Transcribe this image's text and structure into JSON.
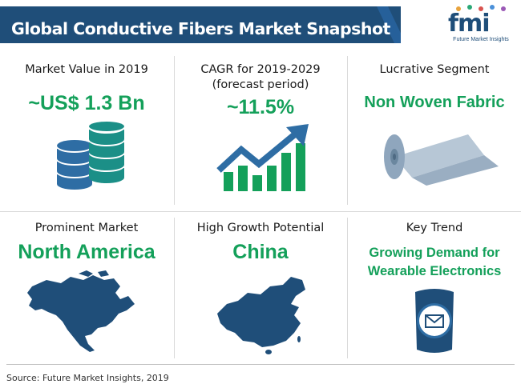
{
  "header": {
    "title": "Global Conductive Fibers Market Snapshot",
    "logo_text": "fmi",
    "logo_subtitle": "Future Market Insights"
  },
  "cells": {
    "market_value": {
      "label": "Market Value in 2019",
      "value": "~US$ 1.3 Bn",
      "icon": "coin-stacks-icon"
    },
    "cagr": {
      "label_line1": "CAGR for 2019-2029",
      "label_line2": "(forecast period)",
      "value": "~11.5%",
      "icon": "growth-chart-icon"
    },
    "segment": {
      "label": "Lucrative Segment",
      "value": "Non Woven Fabric",
      "icon": "fabric-roll-icon"
    },
    "market": {
      "label": "Prominent Market",
      "value": "North America",
      "icon": "north-america-map-icon"
    },
    "growth": {
      "label": "High Growth Potential",
      "value": "China",
      "icon": "china-map-icon"
    },
    "trend": {
      "label": "Key Trend",
      "value_line1": "Growing Demand for",
      "value_line2": "Wearable Electronics",
      "icon": "smartwatch-icon"
    }
  },
  "footer": {
    "source": "Source: Future Market Insights, 2019"
  },
  "colors": {
    "accent_green": "#14a05a",
    "header_blue": "#1f4e79",
    "teal": "#1b8f87",
    "icon_blue": "#2e6da4"
  }
}
